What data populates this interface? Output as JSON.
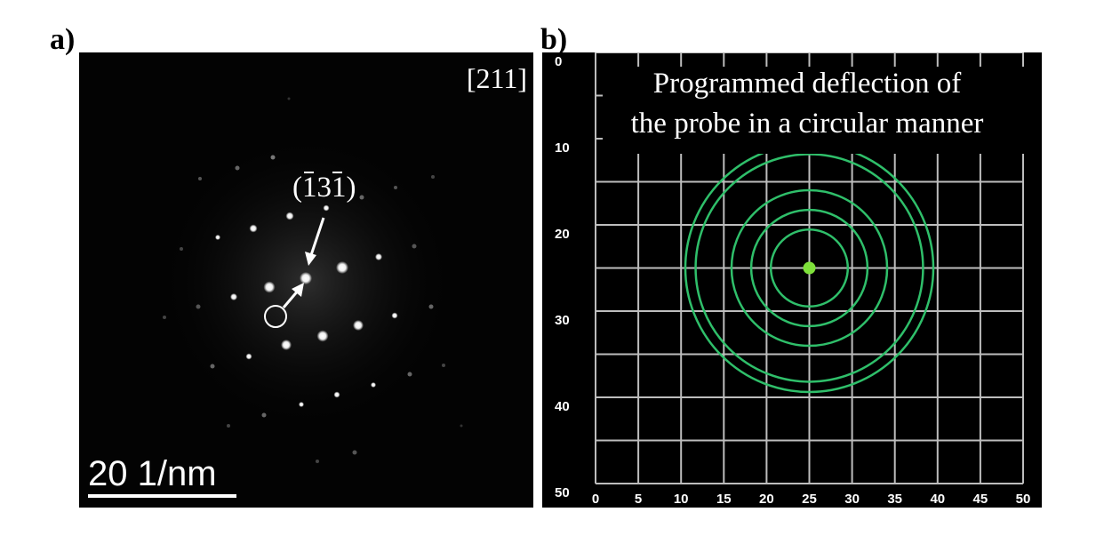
{
  "figure": {
    "panel_a": {
      "label": "a)",
      "zone_axis": "[211]",
      "spot_index": "(131)",
      "scale_bar_text": "20 1/nm"
    },
    "panel_b": {
      "label": "b)",
      "caption_line1": "Programmed deflection of",
      "caption_line2": "the probe in a circular manner",
      "ring_color": "#2fbf6a",
      "center_color": "#7ee03a"
    }
  },
  "chart_data": {
    "type": "scatter",
    "x_ticks": [
      "0",
      "5",
      "10",
      "15",
      "20",
      "25",
      "30",
      "35",
      "40",
      "45",
      "50"
    ],
    "y_ticks": [
      "0",
      "10",
      "20",
      "30",
      "40",
      "50"
    ],
    "xlim": [
      0,
      50
    ],
    "ylim": [
      0,
      50
    ],
    "y_inverted": true,
    "grid": true,
    "grid_step": 5,
    "center": [
      25,
      25
    ],
    "ring_radii": [
      4.5,
      6.8,
      9.1,
      13.3,
      14.5
    ]
  }
}
